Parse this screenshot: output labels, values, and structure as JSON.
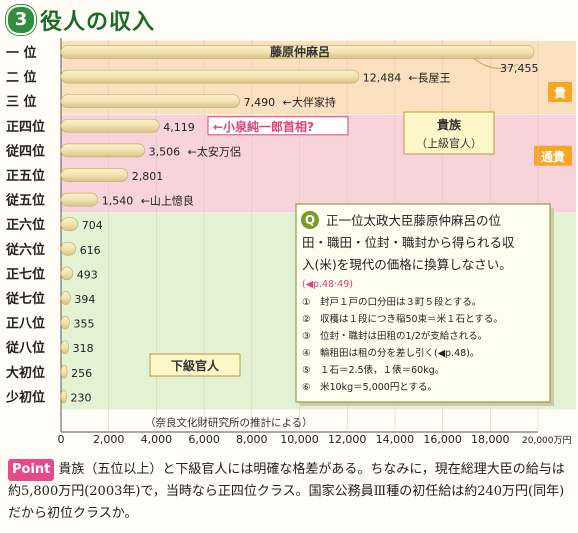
{
  "header": {
    "number": "3",
    "title": "役人の収入"
  },
  "chart_data": {
    "type": "bar",
    "orientation": "horizontal",
    "categories": [
      "一 位",
      "二 位",
      "三 位",
      "正四位",
      "従四位",
      "正五位",
      "従五位",
      "正六位",
      "従六位",
      "正七位",
      "従七位",
      "正八位",
      "従八位",
      "大初位",
      "少初位"
    ],
    "values": [
      37455,
      12484,
      7490,
      4119,
      3506,
      2801,
      1540,
      704,
      616,
      493,
      394,
      355,
      318,
      256,
      230
    ],
    "value_labels": [
      "37,455",
      "12,484",
      "7,490",
      "4,119",
      "3,506",
      "2,801",
      "1,540",
      "704",
      "616",
      "493",
      "394",
      "355",
      "318",
      "256",
      "230"
    ],
    "bar_annotations": [
      "藤原仲麻呂",
      "←長屋王",
      "←大伴家持",
      "←小泉純一郎首相?",
      "←太安万侶",
      "",
      "←山上憶良",
      "",
      "",
      "",
      "",
      "",
      "",
      "",
      ""
    ],
    "xlim": [
      0,
      20000
    ],
    "display_max": 20000,
    "xticks": [
      "0",
      "2,000",
      "4,000",
      "6,000",
      "8,000",
      "10,000",
      "12,000",
      "14,000",
      "16,000",
      "18,000",
      "20,000万円"
    ],
    "xtick_values": [
      0,
      2000,
      4000,
      6000,
      8000,
      10000,
      12000,
      14000,
      16000,
      18000,
      20000
    ],
    "first_bar_broken": true,
    "bands": [
      {
        "label": "貴",
        "rows": [
          0,
          2
        ],
        "color": "#fbe0c0",
        "label_bg": "#f6a623"
      },
      {
        "label": "通貴",
        "rows": [
          3,
          6
        ],
        "color": "#f8d3da",
        "label_bg": "#f6a623"
      },
      {
        "label": "",
        "rows": [
          7,
          14
        ],
        "color": "#e4f2d4",
        "label_bg": ""
      }
    ],
    "legend_kizoku": [
      "貴族",
      "（上級官人）"
    ],
    "legend_kakyu": "下級官人",
    "source_note": "（奈良文化財研究所の推計による）",
    "question": {
      "icon": "Q",
      "lines": [
        "正一位太政大臣藤原仲麻呂の位",
        "田・職田・位封・職封から得られる収",
        "入(米)を現代の価格に換算しなさい。"
      ],
      "ref": "(◀p.48·49)",
      "notes": [
        "①　封戸１戸の口分田は３町５段とする。",
        "②　収穫は１段につき稲50束＝米１石とする。",
        "③　位封・職封は田租の1/2が支給される。",
        "④　輸租田は租の分を差し引く(◀p.48)。",
        "⑤　１石＝2.5俵，１俵＝60kg。",
        "⑥　米10kg＝5,000円とする。"
      ]
    }
  },
  "footer": {
    "point_label": "Point",
    "text": "貴族（五位以上）と下級官人には明確な格差がある。ちなみに，現在総理大臣の給与は約5,800万円(2003年)で，当時なら正四位クラス。国家公務員Ⅲ種の初任給は約240万円(同年)だから初位クラスか。"
  },
  "colors": {
    "bar_fill": "#f2e2ae",
    "bar_edge": "#c9b06a",
    "accent_pink": "#e0407a",
    "header_green": "#1d6b2a"
  }
}
